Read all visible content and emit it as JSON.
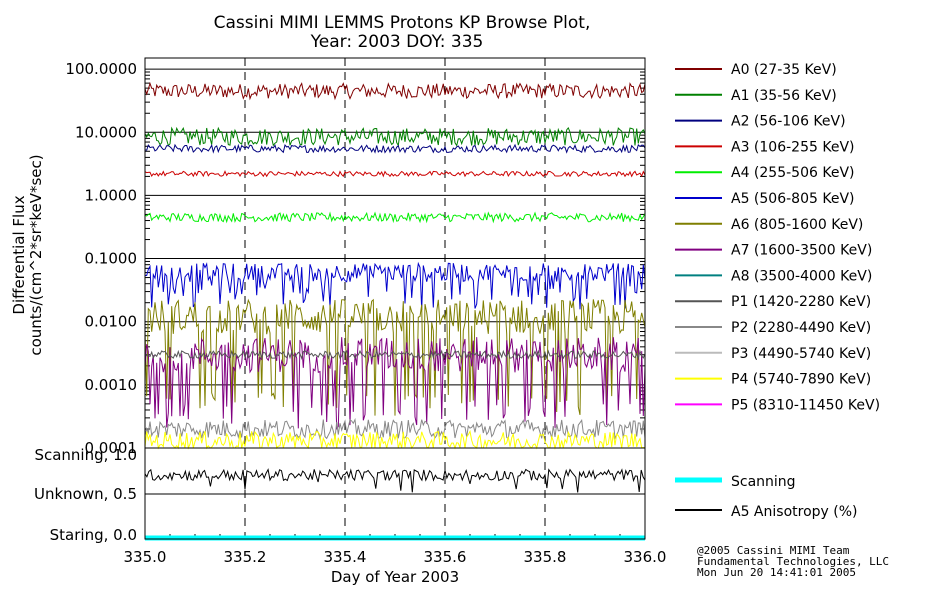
{
  "chart_data": [
    {
      "type": "line",
      "title": "Cassini MIMI LEMMS Protons KP Browse Plot,",
      "subtitle": "Year: 2003 DOY: 335",
      "xlabel": "Day of Year 2003",
      "ylabel": "Differential Flux",
      "ylabel2": "counts/(cm^2*sr*keV*sec)",
      "xlim": [
        335.0,
        336.0
      ],
      "ylim": [
        0.0001,
        150
      ],
      "yscale": "log",
      "x_ticks": [
        "335.0",
        "335.2",
        "335.4",
        "335.6",
        "335.8",
        "336.0"
      ],
      "y_ticks": [
        "100.0000",
        "10.0000",
        "1.0000",
        "0.1000",
        "0.0100",
        "0.0010",
        "0.0001"
      ],
      "grid": true,
      "legend": "right",
      "series": [
        {
          "name": "A0 (27-35 KeV)",
          "color": "#800000",
          "level": 45,
          "spread": 0.12,
          "floor": null
        },
        {
          "name": "A1 (35-56 KeV)",
          "color": "#008000",
          "level": 8.5,
          "spread": 0.14,
          "floor": null
        },
        {
          "name": "A2 (56-106 KeV)",
          "color": "#00007f",
          "level": 5.5,
          "spread": 0.06,
          "floor": null
        },
        {
          "name": "A3 (106-255 KeV)",
          "color": "#cc0000",
          "level": 2.2,
          "spread": 0.04,
          "floor": null
        },
        {
          "name": "A4 (255-506 KeV)",
          "color": "#00ee00",
          "level": 0.45,
          "spread": 0.07,
          "floor": null
        },
        {
          "name": "A5 (506-805 KeV)",
          "color": "#0000cc",
          "level": 0.06,
          "spread": 0.15,
          "floor": 0.015
        },
        {
          "name": "A6 (805-1600 KeV)",
          "color": "#7f7f00",
          "level": 0.012,
          "spread": 0.28,
          "floor": 0.0003
        },
        {
          "name": "A7 (1600-3500 KeV)",
          "color": "#800080",
          "level": 0.003,
          "spread": 0.28,
          "floor": 0.0002
        },
        {
          "name": "A8 (3500-4000 KeV)",
          "color": "#008080",
          "level": null,
          "spread": 0,
          "floor": null
        },
        {
          "name": "P1 (1420-2280 KeV)",
          "color": "#555555",
          "level": 0.003,
          "spread": 0.06,
          "floor": null
        },
        {
          "name": "P2 (2280-4490 KeV)",
          "color": "#888888",
          "level": 0.0002,
          "spread": 0.15,
          "floor": null
        },
        {
          "name": "P3 (4490-5740 KeV)",
          "color": "#bbbbbb",
          "level": null,
          "spread": 0,
          "floor": null
        },
        {
          "name": "P4 (5740-7890 KeV)",
          "color": "#ffff00",
          "level": 0.00013,
          "spread": 0.15,
          "floor": null
        },
        {
          "name": "P5 (8310-11450 KeV)",
          "color": "#ff00ff",
          "level": null,
          "spread": 0,
          "floor": null
        }
      ]
    },
    {
      "type": "line",
      "xlim": [
        335.0,
        336.0
      ],
      "ylim": [
        0.0,
        1.0
      ],
      "y_ticks": [
        "Scanning, 1.0",
        "Unknown, 0.5",
        "Staring, 0.0"
      ],
      "x_ticks": [
        "335.0",
        "335.2",
        "335.4",
        "335.6",
        "335.8",
        "336.0"
      ],
      "xlabel": "Day of Year 2003",
      "legend": "right",
      "series": [
        {
          "name": "Scanning",
          "color": "#00ffff",
          "level": 0.0,
          "spread": 0
        },
        {
          "name": "A5 Anisotropy (%)",
          "color": "#000000",
          "level": 0.75,
          "spread": 0.07
        }
      ]
    }
  ],
  "credit": {
    "line1": "@2005 Cassini MIMI Team",
    "line2": "Fundamental Technologies, LLC",
    "line3": "Mon Jun 20 14:41:01 2005"
  }
}
